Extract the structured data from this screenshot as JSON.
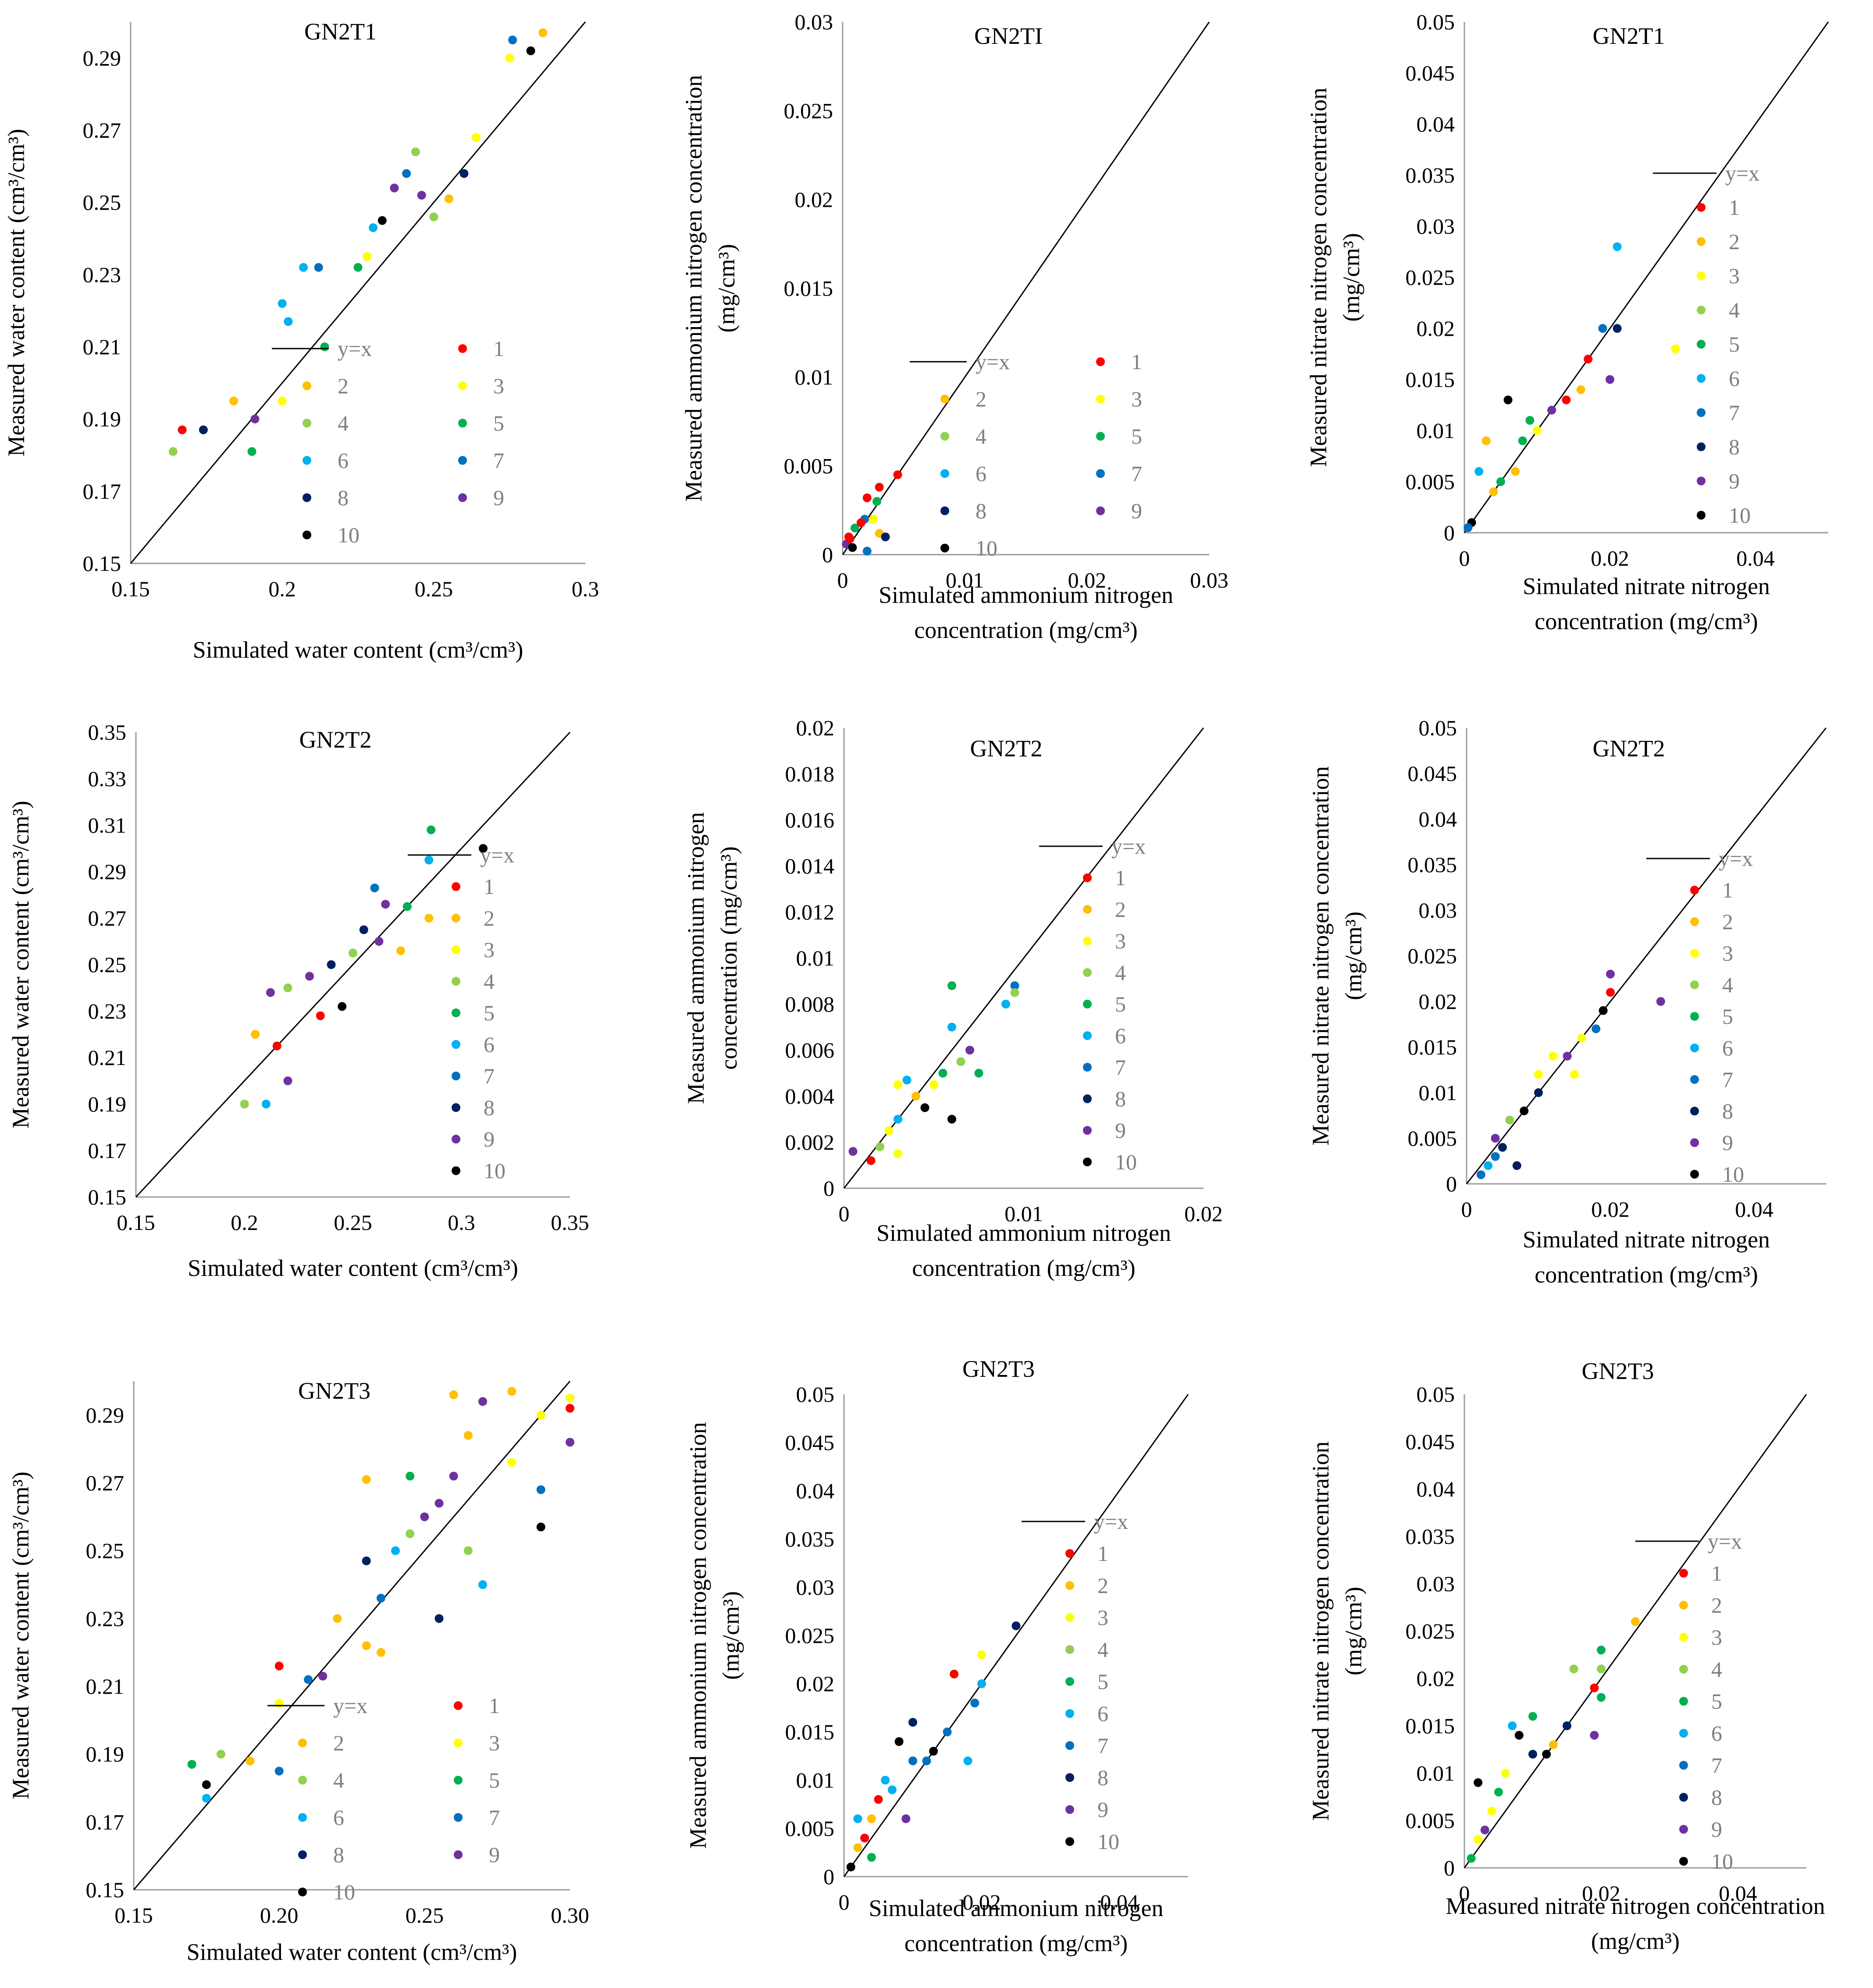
{
  "colors": [
    "#ff0000",
    "#ffc000",
    "#ffff00",
    "#92d050",
    "#00b050",
    "#00b0f0",
    "#0070c0",
    "#002060",
    "#7030a0",
    "#000000"
  ],
  "legend_labels": [
    "y=x",
    "1",
    "2",
    "3",
    "4",
    "5",
    "6",
    "7",
    "8",
    "9",
    "10"
  ],
  "chart_data": [
    {
      "type": "scatter",
      "title": "GN2T1",
      "xlabel": [
        "Simulated water content (cm³/cm³)"
      ],
      "ylabel": [
        "Measured water content (cm³/cm³)"
      ],
      "xlim": [
        0.15,
        0.3
      ],
      "ylim": [
        0.15,
        0.3
      ],
      "xticks": [
        "0.15",
        "0.2",
        "0.25",
        "0.3"
      ],
      "yticks": [
        "0.15",
        "0.17",
        "0.19",
        "0.21",
        "0.23",
        "0.25",
        "0.27",
        "0.29"
      ],
      "legend_layout": "grid",
      "ref_line": "y=x",
      "seed": 11,
      "points": [
        [
          0.276,
          0.295
        ],
        [
          0.282,
          0.292
        ],
        [
          0.275,
          0.29
        ],
        [
          0.286,
          0.297
        ],
        [
          0.264,
          0.268
        ],
        [
          0.26,
          0.258
        ],
        [
          0.255,
          0.251
        ],
        [
          0.25,
          0.246
        ],
        [
          0.246,
          0.252
        ],
        [
          0.244,
          0.264
        ],
        [
          0.241,
          0.258
        ],
        [
          0.237,
          0.254
        ],
        [
          0.233,
          0.245
        ],
        [
          0.23,
          0.243
        ],
        [
          0.228,
          0.235
        ],
        [
          0.225,
          0.232
        ],
        [
          0.214,
          0.21
        ],
        [
          0.202,
          0.217
        ],
        [
          0.2,
          0.195
        ],
        [
          0.191,
          0.19
        ],
        [
          0.184,
          0.195
        ],
        [
          0.174,
          0.187
        ],
        [
          0.167,
          0.187
        ],
        [
          0.164,
          0.181
        ],
        [
          0.19,
          0.181
        ],
        [
          0.2,
          0.222
        ],
        [
          0.207,
          0.232
        ],
        [
          0.212,
          0.232
        ]
      ]
    },
    {
      "type": "scatter",
      "title": "GN2TI",
      "xlabel": [
        "Simulated ammonium nitrogen",
        "concentration (mg/cm³)"
      ],
      "ylabel": [
        "Measured ammonium nitrogen  concentration",
        "(mg/cm³)"
      ],
      "xlim": [
        0,
        0.03
      ],
      "ylim": [
        0,
        0.03
      ],
      "xticks": [
        "0",
        "0.01",
        "0.02",
        "0.03"
      ],
      "yticks": [
        "0",
        "0.005",
        "0.01",
        "0.015",
        "0.02",
        "0.025",
        "0.03"
      ],
      "legend_layout": "grid",
      "ref_line": "y=x",
      "seed": 22,
      "points": [
        [
          0.0045,
          0.0045
        ],
        [
          0.003,
          0.0038
        ],
        [
          0.002,
          0.0032
        ],
        [
          0.0028,
          0.003
        ],
        [
          0.0018,
          0.002
        ],
        [
          0.001,
          0.0015
        ],
        [
          0.0005,
          0.001
        ],
        [
          0.0003,
          0.0006
        ],
        [
          0.002,
          0.0002
        ],
        [
          0.003,
          0.0012
        ],
        [
          0.0015,
          0.0018
        ],
        [
          0.0006,
          0.0009
        ],
        [
          0.0025,
          0.002
        ],
        [
          0.0035,
          0.001
        ],
        [
          0.0008,
          0.0004
        ]
      ]
    },
    {
      "type": "scatter",
      "title": "GN2T1",
      "xlabel": [
        "Simulated nitrate nitrogen",
        "concentration (mg/cm³)"
      ],
      "ylabel": [
        "Measured nitrate nitrogen concentration",
        "(mg/cm³)"
      ],
      "xlim": [
        0,
        0.05
      ],
      "ylim": [
        0,
        0.05
      ],
      "xticks": [
        "0",
        "0.02",
        "0.04"
      ],
      "yticks": [
        "0",
        "0.005",
        "0.01",
        "0.015",
        "0.02",
        "0.025",
        "0.03",
        "0.035",
        "0.04",
        "0.045",
        "0.05"
      ],
      "legend_layout": "column",
      "ref_line": "y=x",
      "seed": 33,
      "points": [
        [
          0.021,
          0.028
        ],
        [
          0.029,
          0.018
        ],
        [
          0.021,
          0.02
        ],
        [
          0.02,
          0.015
        ],
        [
          0.017,
          0.017
        ],
        [
          0.016,
          0.014
        ],
        [
          0.012,
          0.012
        ],
        [
          0.01,
          0.01
        ],
        [
          0.008,
          0.009
        ],
        [
          0.006,
          0.013
        ],
        [
          0.005,
          0.005
        ],
        [
          0.004,
          0.004
        ],
        [
          0.002,
          0.006
        ],
        [
          0.001,
          0.001
        ],
        [
          0.0005,
          0.0005
        ],
        [
          0.003,
          0.009
        ],
        [
          0.007,
          0.006
        ],
        [
          0.009,
          0.011
        ],
        [
          0.014,
          0.013
        ],
        [
          0.019,
          0.02
        ]
      ]
    },
    {
      "type": "scatter",
      "title": "GN2T2",
      "xlabel": [
        "Simulated water content (cm³/cm³)"
      ],
      "ylabel": [
        "Measured water content (cm³/cm³)"
      ],
      "xlim": [
        0.15,
        0.35
      ],
      "ylim": [
        0.15,
        0.35
      ],
      "xticks": [
        "0.15",
        "0.2",
        "0.25",
        "0.3",
        "0.35"
      ],
      "yticks": [
        "0.15",
        "0.17",
        "0.19",
        "0.21",
        "0.23",
        "0.25",
        "0.27",
        "0.29",
        "0.31",
        "0.33",
        "0.35"
      ],
      "legend_layout": "column",
      "ref_line": "y=x",
      "seed": 44,
      "points": [
        [
          0.31,
          0.3
        ],
        [
          0.286,
          0.308
        ],
        [
          0.285,
          0.295
        ],
        [
          0.285,
          0.27
        ],
        [
          0.275,
          0.275
        ],
        [
          0.265,
          0.276
        ],
        [
          0.26,
          0.283
        ],
        [
          0.255,
          0.265
        ],
        [
          0.25,
          0.255
        ],
        [
          0.24,
          0.25
        ],
        [
          0.23,
          0.245
        ],
        [
          0.22,
          0.24
        ],
        [
          0.212,
          0.238
        ],
        [
          0.205,
          0.22
        ],
        [
          0.2,
          0.19
        ],
        [
          0.21,
          0.19
        ],
        [
          0.215,
          0.215
        ],
        [
          0.22,
          0.2
        ],
        [
          0.235,
          0.228
        ],
        [
          0.245,
          0.232
        ],
        [
          0.272,
          0.256
        ],
        [
          0.262,
          0.26
        ]
      ]
    },
    {
      "type": "scatter",
      "title": "GN2T2",
      "xlabel": [
        "Simulated ammonium nitrogen",
        "concentration (mg/cm³)"
      ],
      "ylabel": [
        "Measured ammonium nitrogen",
        "concentration (mg/cm³)"
      ],
      "xlim": [
        0,
        0.02
      ],
      "ylim": [
        0,
        0.02
      ],
      "xticks": [
        "0",
        "0.01",
        "0.02"
      ],
      "yticks": [
        "0",
        "0.002",
        "0.004",
        "0.006",
        "0.008",
        "0.01",
        "0.012",
        "0.014",
        "0.016",
        "0.018",
        "0.02"
      ],
      "legend_layout": "column",
      "ref_line": "y=x",
      "seed": 55,
      "points": [
        [
          0.006,
          0.0088
        ],
        [
          0.0095,
          0.0088
        ],
        [
          0.0095,
          0.0085
        ],
        [
          0.009,
          0.008
        ],
        [
          0.007,
          0.006
        ],
        [
          0.006,
          0.007
        ],
        [
          0.0055,
          0.005
        ],
        [
          0.005,
          0.0045
        ],
        [
          0.004,
          0.004
        ],
        [
          0.0035,
          0.0047
        ],
        [
          0.003,
          0.0045
        ],
        [
          0.003,
          0.003
        ],
        [
          0.0025,
          0.0025
        ],
        [
          0.002,
          0.0018
        ],
        [
          0.0015,
          0.0012
        ],
        [
          0.0005,
          0.0016
        ],
        [
          0.006,
          0.003
        ],
        [
          0.003,
          0.0015
        ],
        [
          0.0045,
          0.0035
        ],
        [
          0.0065,
          0.0055
        ],
        [
          0.0075,
          0.005
        ]
      ]
    },
    {
      "type": "scatter",
      "title": "GN2T2",
      "xlabel": [
        "Simulated nitrate nitrogen",
        "concentration (mg/cm³)"
      ],
      "ylabel": [
        "Measured nitrate nitrogen concentration",
        "(mg/cm³)"
      ],
      "xlim": [
        0,
        0.05
      ],
      "ylim": [
        0,
        0.05
      ],
      "xticks": [
        "0",
        "0.02",
        "0.04"
      ],
      "yticks": [
        "0",
        "0.005",
        "0.01",
        "0.015",
        "0.02",
        "0.025",
        "0.03",
        "0.035",
        "0.04",
        "0.045",
        "0.05"
      ],
      "legend_layout": "column",
      "ref_line": "y=x",
      "seed": 66,
      "points": [
        [
          0.02,
          0.023
        ],
        [
          0.027,
          0.02
        ],
        [
          0.02,
          0.021
        ],
        [
          0.019,
          0.019
        ],
        [
          0.016,
          0.016
        ],
        [
          0.015,
          0.012
        ],
        [
          0.012,
          0.014
        ],
        [
          0.01,
          0.01
        ],
        [
          0.008,
          0.008
        ],
        [
          0.006,
          0.007
        ],
        [
          0.005,
          0.004
        ],
        [
          0.004,
          0.003
        ],
        [
          0.003,
          0.002
        ],
        [
          0.002,
          0.001
        ],
        [
          0.007,
          0.002
        ],
        [
          0.01,
          0.012
        ],
        [
          0.014,
          0.014
        ],
        [
          0.018,
          0.017
        ],
        [
          0.004,
          0.005
        ]
      ]
    },
    {
      "type": "scatter",
      "title": "GN2T3",
      "xlabel": [
        "Simulated water content (cm³/cm³)"
      ],
      "ylabel": [
        "Measured water content (cm³/cm³)"
      ],
      "xlim": [
        0.15,
        0.3
      ],
      "ylim": [
        0.15,
        0.3
      ],
      "xticks": [
        "0.15",
        "0.20",
        "0.25",
        "0.30"
      ],
      "yticks": [
        "0.15",
        "0.17",
        "0.19",
        "0.21",
        "0.23",
        "0.25",
        "0.27",
        "0.29"
      ],
      "legend_layout": "grid",
      "ref_line": "y=x",
      "seed": 77,
      "points": [
        [
          0.3,
          0.295
        ],
        [
          0.3,
          0.292
        ],
        [
          0.3,
          0.282
        ],
        [
          0.29,
          0.29
        ],
        [
          0.29,
          0.268
        ],
        [
          0.29,
          0.257
        ],
        [
          0.28,
          0.297
        ],
        [
          0.28,
          0.276
        ],
        [
          0.27,
          0.294
        ],
        [
          0.26,
          0.296
        ],
        [
          0.265,
          0.284
        ],
        [
          0.26,
          0.272
        ],
        [
          0.255,
          0.264
        ],
        [
          0.25,
          0.26
        ],
        [
          0.245,
          0.272
        ],
        [
          0.24,
          0.25
        ],
        [
          0.235,
          0.236
        ],
        [
          0.23,
          0.271
        ],
        [
          0.23,
          0.247
        ],
        [
          0.23,
          0.222
        ],
        [
          0.22,
          0.23
        ],
        [
          0.215,
          0.213
        ],
        [
          0.21,
          0.212
        ],
        [
          0.2,
          0.216
        ],
        [
          0.2,
          0.205
        ],
        [
          0.2,
          0.185
        ],
        [
          0.19,
          0.188
        ],
        [
          0.18,
          0.19
        ],
        [
          0.17,
          0.187
        ],
        [
          0.175,
          0.181
        ],
        [
          0.175,
          0.177
        ],
        [
          0.27,
          0.24
        ],
        [
          0.255,
          0.23
        ],
        [
          0.265,
          0.25
        ],
        [
          0.245,
          0.255
        ],
        [
          0.235,
          0.22
        ]
      ]
    },
    {
      "type": "scatter",
      "title": "GN2T3",
      "xlabel": [
        "Simulated ammonium nitrogen",
        "concentration (mg/cm³)"
      ],
      "ylabel": [
        "Measured ammonium nitrogen concentration",
        "(mg/cm³)"
      ],
      "xlim": [
        0,
        0.05
      ],
      "ylim": [
        0,
        0.05
      ],
      "xticks": [
        "0",
        "0.02",
        "0.04"
      ],
      "yticks": [
        "0",
        "0.005",
        "0.01",
        "0.015",
        "0.02",
        "0.025",
        "0.03",
        "0.035",
        "0.04",
        "0.045",
        "0.05"
      ],
      "legend_layout": "column",
      "ref_line": "y=x",
      "seed": 88,
      "points": [
        [
          0.025,
          0.026
        ],
        [
          0.02,
          0.023
        ],
        [
          0.02,
          0.02
        ],
        [
          0.019,
          0.018
        ],
        [
          0.016,
          0.021
        ],
        [
          0.015,
          0.015
        ],
        [
          0.013,
          0.013
        ],
        [
          0.01,
          0.016
        ],
        [
          0.01,
          0.012
        ],
        [
          0.008,
          0.014
        ],
        [
          0.006,
          0.01
        ],
        [
          0.005,
          0.008
        ],
        [
          0.004,
          0.006
        ],
        [
          0.003,
          0.004
        ],
        [
          0.002,
          0.003
        ],
        [
          0.001,
          0.001
        ],
        [
          0.002,
          0.006
        ],
        [
          0.007,
          0.009
        ],
        [
          0.012,
          0.012
        ],
        [
          0.018,
          0.012
        ],
        [
          0.004,
          0.002
        ],
        [
          0.009,
          0.006
        ]
      ]
    },
    {
      "type": "scatter",
      "title": "GN2T3",
      "xlabel": [
        "Measured nitrate nitrogen concentration",
        "(mg/cm³)"
      ],
      "ylabel": [
        "Measured nitrate nitrogen concentration",
        "(mg/cm³)"
      ],
      "xlim": [
        0,
        0.05
      ],
      "ylim": [
        0,
        0.05
      ],
      "xticks": [
        "0",
        "0.02",
        "0.04"
      ],
      "yticks": [
        "0",
        "0.005",
        "0.01",
        "0.015",
        "0.02",
        "0.025",
        "0.03",
        "0.035",
        "0.04",
        "0.045",
        "0.05"
      ],
      "legend_layout": "column",
      "ref_line": "y=x",
      "seed": 99,
      "points": [
        [
          0.025,
          0.026
        ],
        [
          0.02,
          0.023
        ],
        [
          0.02,
          0.021
        ],
        [
          0.019,
          0.019
        ],
        [
          0.02,
          0.018
        ],
        [
          0.016,
          0.021
        ],
        [
          0.015,
          0.015
        ],
        [
          0.013,
          0.013
        ],
        [
          0.01,
          0.016
        ],
        [
          0.01,
          0.012
        ],
        [
          0.008,
          0.014
        ],
        [
          0.006,
          0.01
        ],
        [
          0.005,
          0.008
        ],
        [
          0.004,
          0.006
        ],
        [
          0.003,
          0.004
        ],
        [
          0.002,
          0.003
        ],
        [
          0.001,
          0.001
        ],
        [
          0.002,
          0.009
        ],
        [
          0.007,
          0.015
        ],
        [
          0.012,
          0.012
        ],
        [
          0.019,
          0.014
        ]
      ]
    }
  ]
}
